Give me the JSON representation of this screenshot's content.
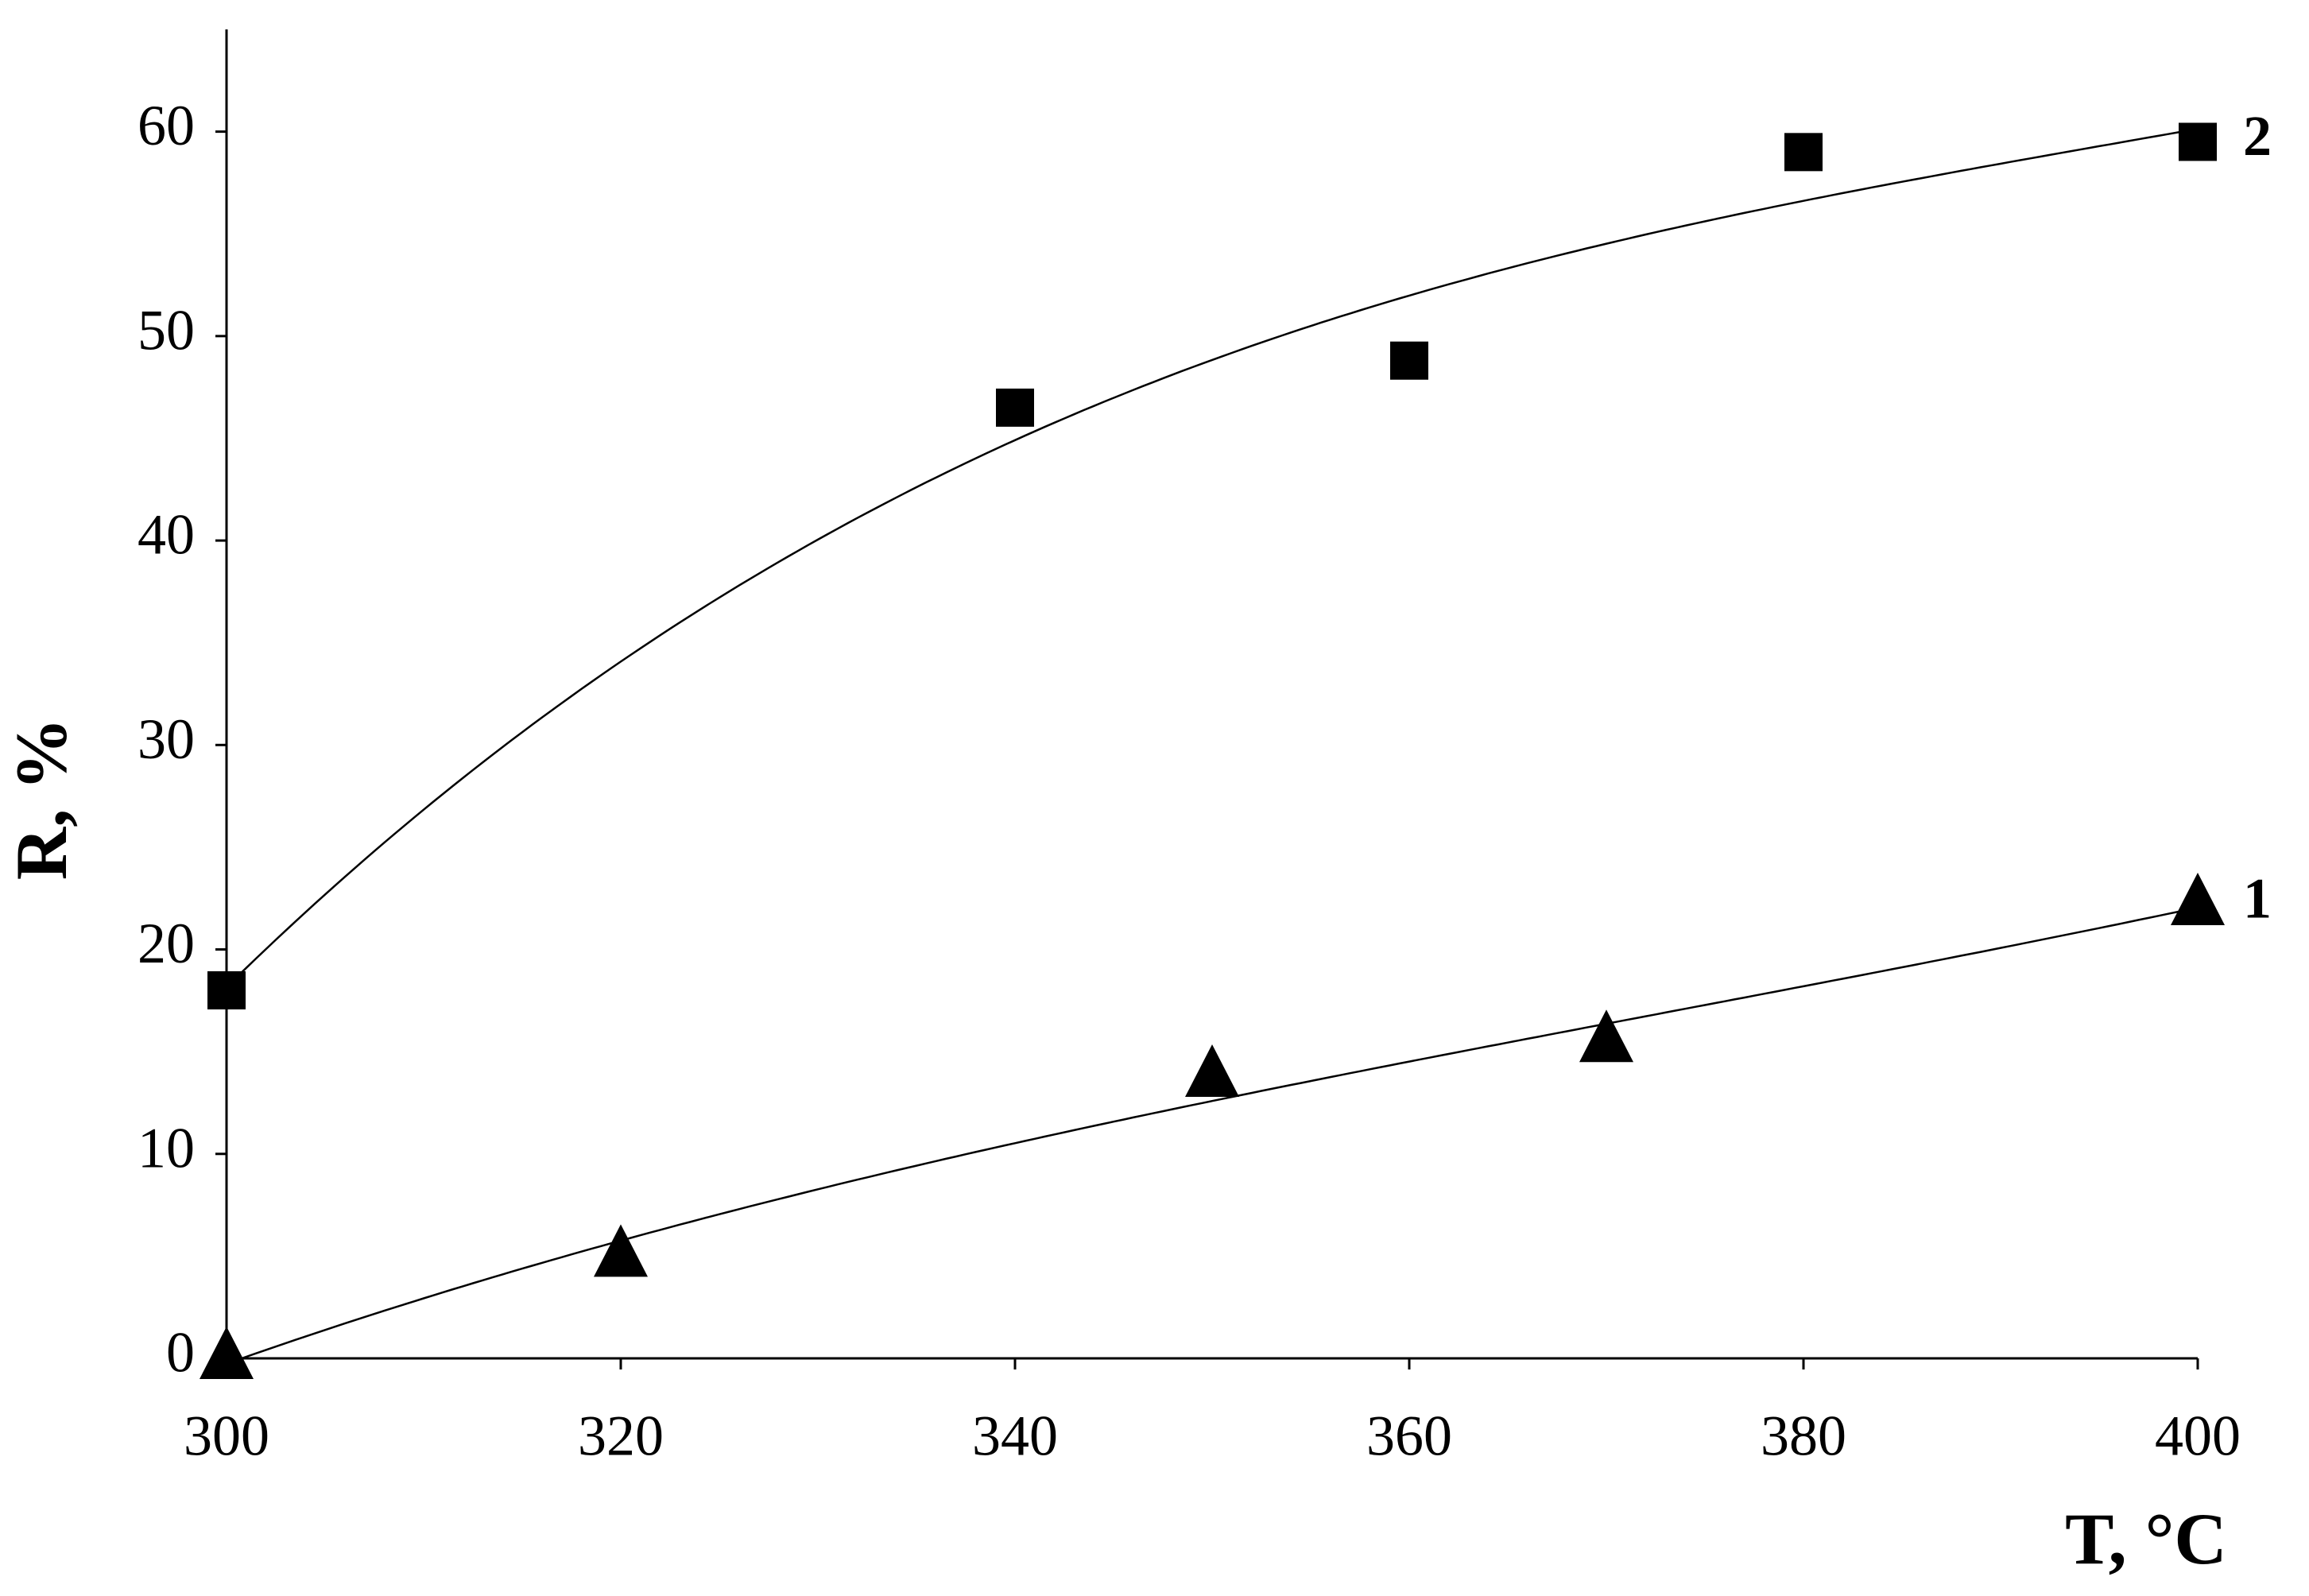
{
  "chart_data": {
    "type": "scatter",
    "x_label": "T, °C",
    "y_label": "R, %",
    "xlim": [
      300,
      400
    ],
    "xticks": [
      300,
      320,
      340,
      360,
      380,
      400
    ],
    "ylim": [
      0,
      65
    ],
    "yticks": [
      0,
      10,
      20,
      30,
      40,
      50,
      60
    ],
    "trendline_order": 3,
    "series": [
      {
        "name": "1",
        "color": "#000000",
        "marker": "triangle",
        "x": [
          300,
          320,
          350,
          370,
          400
        ],
        "values": [
          0,
          5,
          13.8,
          15.5,
          22.2
        ]
      },
      {
        "name": "2",
        "color": "#000000",
        "marker": "square",
        "x": [
          300,
          340,
          360,
          380,
          400
        ],
        "values": [
          18,
          46.5,
          48.8,
          59,
          59.5
        ]
      }
    ]
  }
}
